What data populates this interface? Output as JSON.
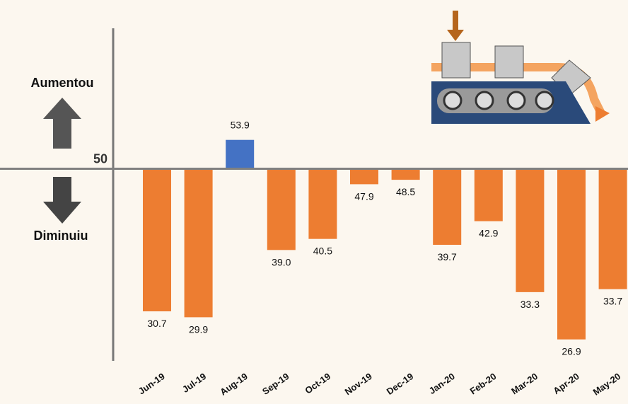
{
  "chart_data": {
    "type": "bar",
    "categories": [
      "Jun-19",
      "Jul-19",
      "Aug-19",
      "Sep-19",
      "Oct-19",
      "Nov-19",
      "Dec-19",
      "Jan-20",
      "Feb-20",
      "Mar-20",
      "Apr-20",
      "May-20"
    ],
    "values": [
      30.7,
      29.9,
      53.9,
      39.0,
      40.5,
      47.9,
      48.5,
      39.7,
      42.9,
      33.3,
      26.9,
      33.7
    ],
    "value_labels": [
      "30.7",
      "29.9",
      "53.9",
      "39.0",
      "40.5",
      "47.9",
      "48.5",
      "39.7",
      "42.9",
      "33.3",
      "26.9",
      "33.7"
    ],
    "colors": [
      "#ED7D31",
      "#ED7D31",
      "#4472C4",
      "#ED7D31",
      "#ED7D31",
      "#ED7D31",
      "#ED7D31",
      "#ED7D31",
      "#ED7D31",
      "#ED7D31",
      "#ED7D31",
      "#ED7D31"
    ],
    "ylim": [
      24,
      69
    ],
    "yticks": [
      50
    ],
    "annotations": [
      "Aumentou",
      "Diminuiu"
    ]
  }
}
